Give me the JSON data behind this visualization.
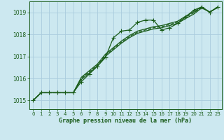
{
  "title": "Graphe pression niveau de la mer (hPa)",
  "bg_color": "#cce8f0",
  "grid_color": "#aaccdd",
  "line_color": "#1a5c1a",
  "xlim": [
    -0.5,
    23.5
  ],
  "ylim": [
    1014.6,
    1019.5
  ],
  "xticks": [
    0,
    1,
    2,
    3,
    4,
    5,
    6,
    7,
    8,
    9,
    10,
    11,
    12,
    13,
    14,
    15,
    16,
    17,
    18,
    19,
    20,
    21,
    22,
    23
  ],
  "yticks": [
    1015,
    1016,
    1017,
    1018,
    1019
  ],
  "series": [
    {
      "y": [
        1015.0,
        1015.35,
        1015.35,
        1015.35,
        1015.35,
        1015.35,
        1015.85,
        1016.2,
        1016.55,
        1016.95,
        1017.85,
        1018.15,
        1018.2,
        1018.55,
        1018.65,
        1018.65,
        1018.2,
        1018.3,
        1018.5,
        1018.8,
        1019.1,
        1019.25,
        1019.0,
        1019.25
      ],
      "linestyle": "-",
      "marker": "+",
      "linewidth": 0.9,
      "markersize": 4
    },
    {
      "y": [
        1015.0,
        1015.35,
        1015.35,
        1015.35,
        1015.35,
        1015.35,
        1015.95,
        1016.25,
        1016.55,
        1017.0,
        1017.3,
        1017.6,
        1017.85,
        1018.05,
        1018.15,
        1018.25,
        1018.3,
        1018.4,
        1018.5,
        1018.72,
        1018.92,
        1019.2,
        1019.02,
        1019.22
      ],
      "linestyle": "-",
      "marker": "None",
      "linewidth": 0.9,
      "markersize": 0
    },
    {
      "y": [
        1015.0,
        1015.35,
        1015.35,
        1015.35,
        1015.35,
        1015.35,
        1016.0,
        1016.3,
        1016.6,
        1017.05,
        1017.35,
        1017.65,
        1017.9,
        1018.1,
        1018.2,
        1018.3,
        1018.35,
        1018.45,
        1018.55,
        1018.78,
        1018.98,
        1019.22,
        1019.02,
        1019.22
      ],
      "linestyle": "--",
      "marker": "None",
      "linewidth": 0.9,
      "markersize": 0
    },
    {
      "y": [
        1015.0,
        1015.35,
        1015.35,
        1015.35,
        1015.35,
        1015.35,
        1016.05,
        1016.35,
        1016.65,
        1017.1,
        1017.4,
        1017.7,
        1017.95,
        1018.15,
        1018.25,
        1018.35,
        1018.4,
        1018.5,
        1018.6,
        1018.83,
        1019.03,
        1019.25,
        1019.02,
        1019.25
      ],
      "linestyle": "-",
      "marker": "None",
      "linewidth": 0.9,
      "markersize": 0
    }
  ]
}
